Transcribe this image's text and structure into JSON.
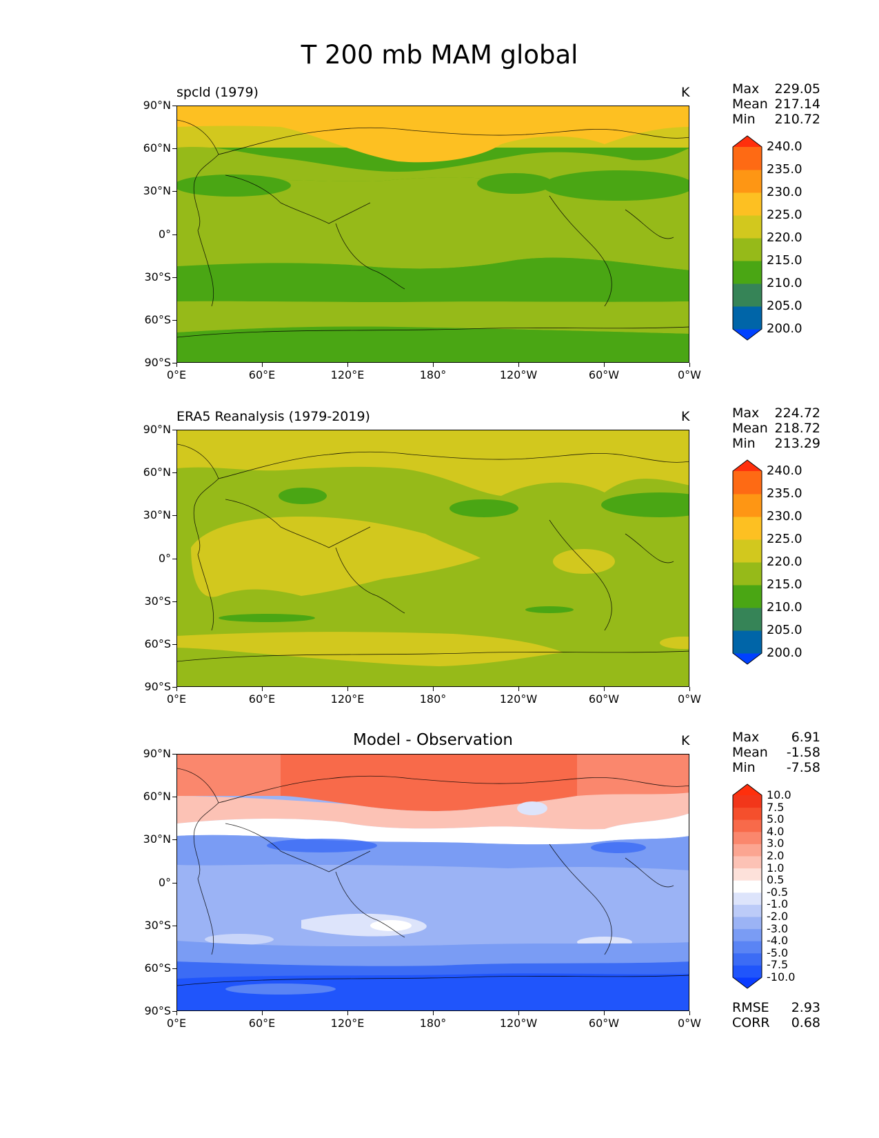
{
  "title": "T 200 mb MAM global",
  "panels": [
    {
      "title": "spcld (1979)",
      "units": "K",
      "stats": {
        "max_label": "Max",
        "max": "229.05",
        "mean_label": "Mean",
        "mean": "217.14",
        "min_label": "Min",
        "min": "210.72"
      },
      "colorbar": {
        "levels": [
          "200.0",
          "205.0",
          "210.0",
          "215.0",
          "220.0",
          "225.0",
          "230.0",
          "235.0",
          "240.0"
        ],
        "colors": [
          "#0041ff",
          "#0065a8",
          "#368457",
          "#4aa614",
          "#96ba19",
          "#d2c81e",
          "#fdc022",
          "#fe9614",
          "#fe6a14",
          "#ff2f0c"
        ]
      }
    },
    {
      "title": "ERA5 Reanalysis (1979-2019)",
      "units": "K",
      "stats": {
        "max_label": "Max",
        "max": "224.72",
        "mean_label": "Mean",
        "mean": "218.72",
        "min_label": "Min",
        "min": "213.29"
      },
      "colorbar": {
        "levels": [
          "200.0",
          "205.0",
          "210.0",
          "215.0",
          "220.0",
          "225.0",
          "230.0",
          "235.0",
          "240.0"
        ],
        "colors": [
          "#0041ff",
          "#0065a8",
          "#368457",
          "#4aa614",
          "#96ba19",
          "#d2c81e",
          "#fdc022",
          "#fe9614",
          "#fe6a14",
          "#ff2f0c"
        ]
      }
    },
    {
      "title": "Model - Observation",
      "units": "K",
      "stats": {
        "max_label": "Max",
        "max": "6.91",
        "mean_label": "Mean",
        "mean": "-1.58",
        "min_label": "Min",
        "min": "-7.58"
      },
      "colorbar": {
        "levels": [
          "-10.0",
          "-7.5",
          "-5.0",
          "-4.0",
          "-3.0",
          "-2.0",
          "-1.0",
          "-0.5",
          "0.5",
          "1.0",
          "2.0",
          "3.0",
          "4.0",
          "5.0",
          "7.5",
          "10.0"
        ],
        "colors": [
          "#0a3cff",
          "#2055fb",
          "#3c6cf5",
          "#5a84f4",
          "#7a9cf4",
          "#9bb3f5",
          "#bccbf8",
          "#dde4fb",
          "#ffffff",
          "#fde1da",
          "#fcc2b5",
          "#fba591",
          "#fa876d",
          "#f86a4a",
          "#f54f2c",
          "#f2361a",
          "#ff2f0c"
        ]
      },
      "metrics": {
        "rmse_label": "RMSE",
        "rmse": "2.93",
        "corr_label": "CORR",
        "corr": "0.68"
      }
    }
  ],
  "axes": {
    "lat_labels": [
      "90°N",
      "60°N",
      "30°N",
      "0°",
      "30°S",
      "60°S",
      "90°S"
    ],
    "lon_labels": [
      "0°E",
      "60°E",
      "120°E",
      "180°",
      "120°W",
      "60°W",
      "0°W"
    ]
  }
}
